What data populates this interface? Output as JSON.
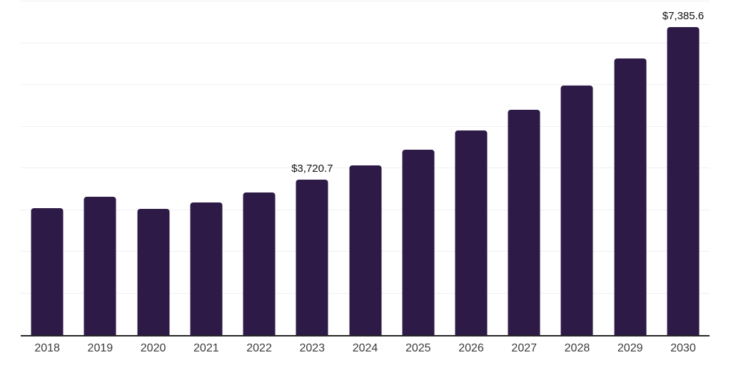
{
  "chart_data": {
    "type": "bar",
    "title": "",
    "xlabel": "",
    "ylabel": "",
    "categories": [
      "2018",
      "2019",
      "2020",
      "2021",
      "2022",
      "2023",
      "2024",
      "2025",
      "2026",
      "2027",
      "2028",
      "2029",
      "2030"
    ],
    "values": [
      3050,
      3315,
      3030,
      3175,
      3420,
      3720.7,
      4070,
      4445,
      4905,
      5400,
      5985,
      6640,
      7385.6
    ],
    "labeled_points": [
      {
        "category": "2023",
        "label": "$3,720.7"
      },
      {
        "category": "2030",
        "label": "$7,385.6"
      }
    ],
    "ylim": [
      0,
      8000
    ],
    "gridline_step": 1000,
    "grid": "horizontal-only",
    "legend": "none",
    "y_tick_labels_visible": false
  },
  "colors": {
    "bar": "#2e1a47",
    "background": "#ffffff",
    "gridline": "#f0f0f1",
    "axis_line": "#262626",
    "x_tick_label": "#3a3a3a",
    "data_label": "#111111"
  }
}
